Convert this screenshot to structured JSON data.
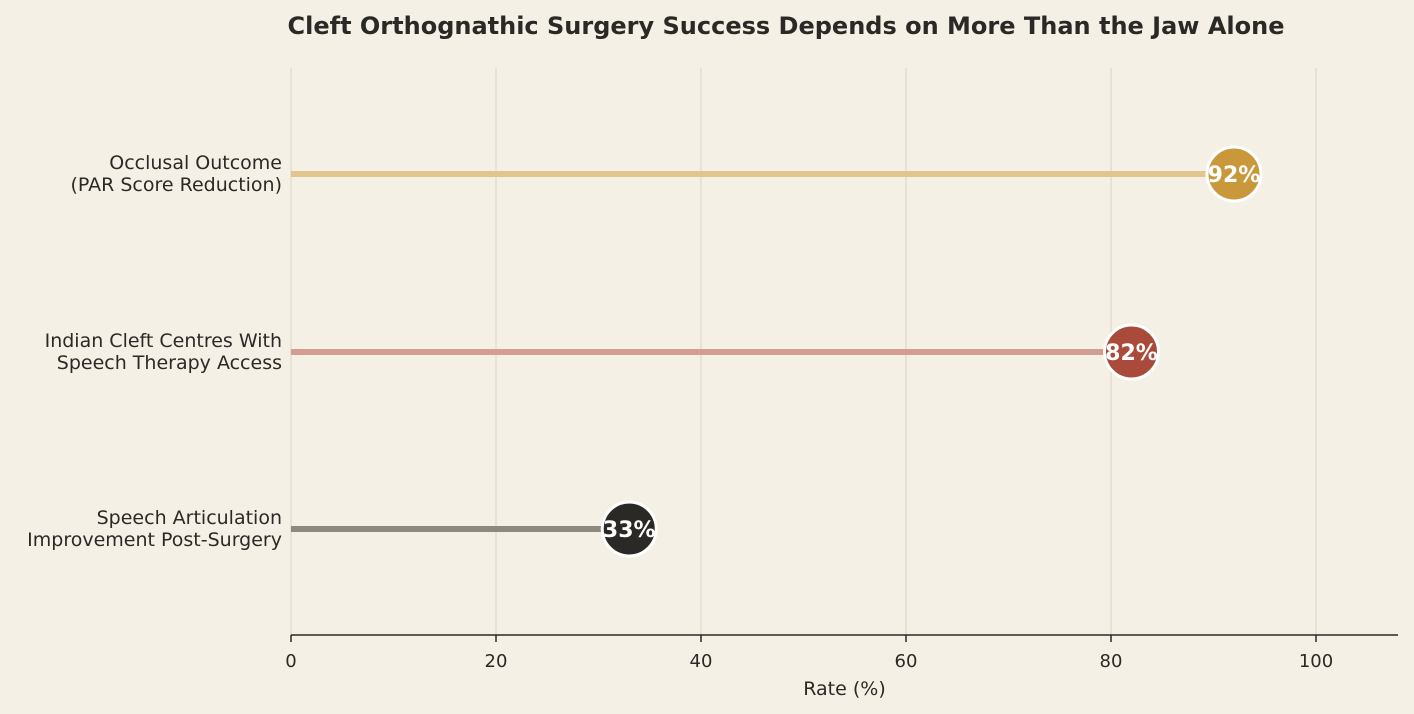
{
  "chart_data": {
    "type": "bar",
    "orientation": "horizontal",
    "style": "lollipop",
    "title": "Cleft Orthognathic Surgery Success Depends on More Than the Jaw Alone",
    "xlabel": "Rate (%)",
    "ylabel": "",
    "xlim": [
      0,
      108
    ],
    "xticks": [
      0,
      20,
      40,
      60,
      80,
      100
    ],
    "grid": "vertical",
    "categories": [
      [
        "Occlusal Outcome",
        "(PAR Score Reduction)"
      ],
      [
        "Indian Cleft Centres With",
        "Speech Therapy Access"
      ],
      [
        "Speech Articulation",
        "Improvement Post-Surgery"
      ]
    ],
    "values": [
      92,
      82,
      33
    ],
    "value_labels": [
      "92%",
      "82%",
      "33%"
    ],
    "dot_colors": [
      "#c9983b",
      "#a94a3a",
      "#2b2925"
    ],
    "stem_colors": [
      "#e2c48f",
      "#d39e90",
      "#8d8880"
    ]
  }
}
